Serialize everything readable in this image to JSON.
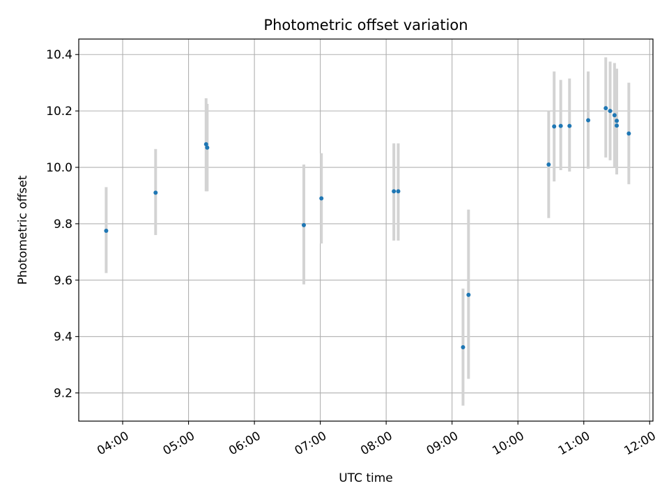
{
  "chart_data": {
    "type": "scatter",
    "title": "Photometric offset variation",
    "xlabel": "UTC time",
    "ylabel": "Photometric offset",
    "xlim": [
      "03:20",
      "12:03"
    ],
    "ylim": [
      9.1,
      10.455
    ],
    "x_ticks": [
      "04:00",
      "05:00",
      "06:00",
      "07:00",
      "08:00",
      "09:00",
      "10:00",
      "11:00",
      "12:00"
    ],
    "y_ticks": [
      "9.2",
      "9.4",
      "9.6",
      "9.8",
      "10.0",
      "10.2",
      "10.4"
    ],
    "grid": true,
    "point_color": "#1f77b4",
    "errorbar_color": "#d3d3d3",
    "points": [
      {
        "time": "03:45",
        "y": 9.775,
        "ylow": 9.625,
        "yhigh": 9.93
      },
      {
        "time": "04:30",
        "y": 9.91,
        "ylow": 9.76,
        "yhigh": 10.065
      },
      {
        "time": "05:16",
        "y": 10.082,
        "ylow": 9.915,
        "yhigh": 10.245
      },
      {
        "time": "05:17",
        "y": 10.07,
        "ylow": 9.915,
        "yhigh": 10.225
      },
      {
        "time": "06:45",
        "y": 9.795,
        "ylow": 9.585,
        "yhigh": 10.01
      },
      {
        "time": "07:01",
        "y": 9.89,
        "ylow": 9.73,
        "yhigh": 10.05
      },
      {
        "time": "08:07",
        "y": 9.915,
        "ylow": 9.74,
        "yhigh": 10.085
      },
      {
        "time": "08:11",
        "y": 9.915,
        "ylow": 9.74,
        "yhigh": 10.085
      },
      {
        "time": "09:10",
        "y": 9.362,
        "ylow": 9.155,
        "yhigh": 9.57
      },
      {
        "time": "09:15",
        "y": 9.548,
        "ylow": 9.25,
        "yhigh": 9.85
      },
      {
        "time": "10:28",
        "y": 10.01,
        "ylow": 9.82,
        "yhigh": 10.2
      },
      {
        "time": "10:33",
        "y": 10.145,
        "ylow": 9.95,
        "yhigh": 10.34
      },
      {
        "time": "10:39",
        "y": 10.147,
        "ylow": 9.99,
        "yhigh": 10.31
      },
      {
        "time": "10:47",
        "y": 10.147,
        "ylow": 9.985,
        "yhigh": 10.315
      },
      {
        "time": "11:04",
        "y": 10.167,
        "ylow": 9.995,
        "yhigh": 10.34
      },
      {
        "time": "11:20",
        "y": 10.21,
        "ylow": 10.035,
        "yhigh": 10.39
      },
      {
        "time": "11:24",
        "y": 10.2,
        "ylow": 10.025,
        "yhigh": 10.375
      },
      {
        "time": "11:28",
        "y": 10.185,
        "ylow": 10.0,
        "yhigh": 10.37
      },
      {
        "time": "11:30",
        "y": 10.148,
        "ylow": 9.975,
        "yhigh": 10.35
      },
      {
        "time": "11:30",
        "y": 10.165,
        "ylow": 9.975,
        "yhigh": 10.35
      },
      {
        "time": "11:41",
        "y": 10.12,
        "ylow": 9.94,
        "yhigh": 10.3
      }
    ]
  }
}
